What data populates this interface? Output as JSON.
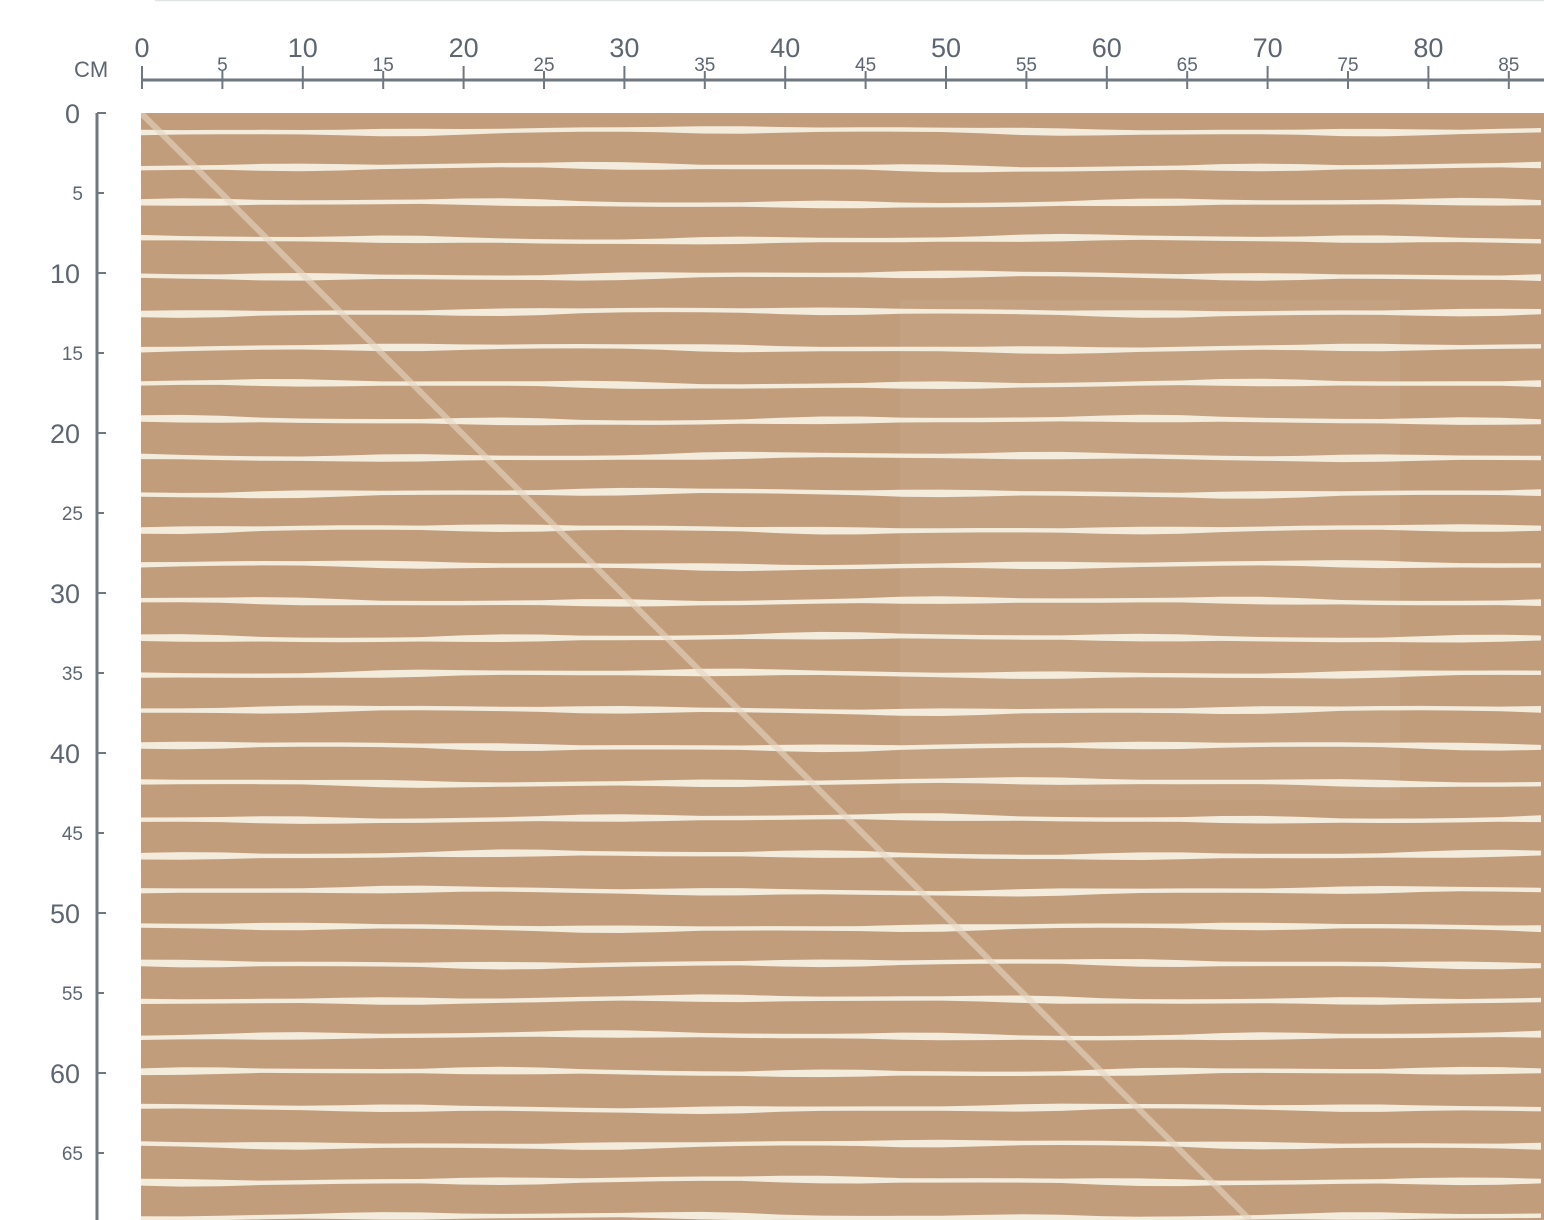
{
  "ruler": {
    "unit": "CM",
    "x_labels": [
      0,
      5,
      10,
      15,
      20,
      25,
      30,
      35,
      40,
      45,
      50,
      55,
      60,
      65,
      70,
      75,
      80,
      85
    ],
    "y_labels": [
      0,
      5,
      10,
      15,
      20,
      25,
      30,
      35,
      40,
      45,
      50,
      55,
      60,
      65
    ]
  }
}
